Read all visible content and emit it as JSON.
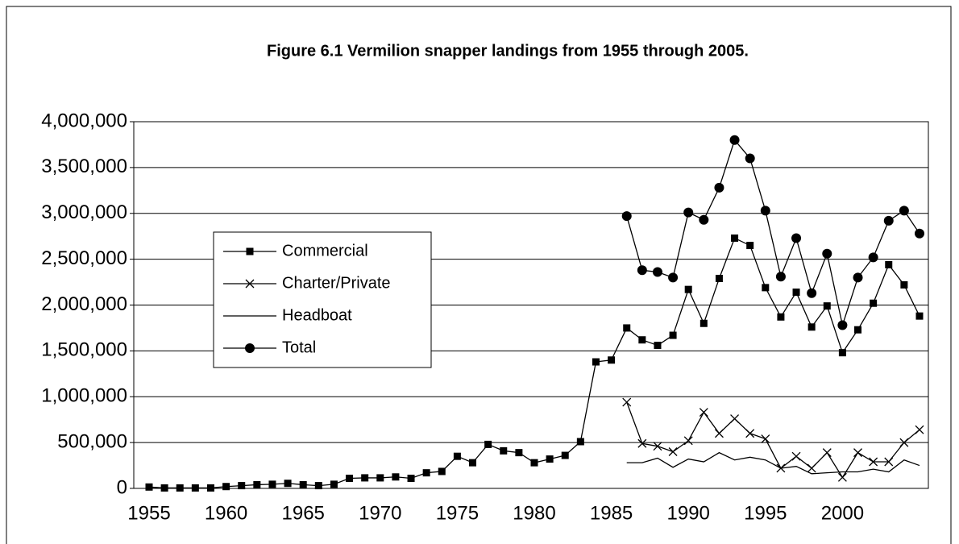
{
  "chart_data": {
    "type": "line",
    "title": "Figure 6.1  Vermilion snapper landings from 1955 through 2005.",
    "categories": [
      1955,
      null,
      null,
      null,
      null,
      1960,
      null,
      null,
      null,
      null,
      1965,
      null,
      null,
      null,
      null,
      1970,
      null,
      null,
      null,
      null,
      1975,
      null,
      null,
      null,
      null,
      1980,
      null,
      null,
      null,
      null,
      1985,
      null,
      null,
      null,
      null,
      1990,
      null,
      null,
      null,
      null,
      1995,
      null,
      null,
      null,
      null,
      2000,
      null,
      null,
      null,
      null,
      null
    ],
    "ylim": [
      0,
      4000000
    ],
    "yticks": [
      0,
      {
        "value": 500000,
        "label": "500,000"
      },
      {
        "value": 1000000,
        "label": "1,000,000"
      },
      {
        "value": 1500000,
        "label": "1,500,000"
      },
      {
        "value": 2000000,
        "label": "2,000,000"
      },
      {
        "value": 2500000,
        "label": "2,500,000"
      },
      {
        "value": 3000000,
        "label": "3,000,000"
      },
      {
        "value": 3500000,
        "label": "3,500,000"
      },
      {
        "value": 4000000,
        "label": "4,000,000"
      }
    ],
    "grid": true,
    "legend": "left",
    "series": [
      {
        "name": "Commercial",
        "color": "#000000",
        "marker": "square",
        "values": [
          15000,
          5000,
          5000,
          5000,
          5000,
          20000,
          30000,
          40000,
          45000,
          55000,
          40000,
          30000,
          45000,
          110000,
          115000,
          115000,
          125000,
          110000,
          170000,
          185000,
          350000,
          280000,
          480000,
          410000,
          390000,
          280000,
          320000,
          360000,
          510000,
          1380000,
          1400000,
          1750000,
          1620000,
          1560000,
          1670000,
          2170000,
          1800000,
          2290000,
          2730000,
          2650000,
          2190000,
          1870000,
          2140000,
          1760000,
          1990000,
          1480000,
          1730000,
          2020000,
          2440000,
          2220000,
          1880000
        ]
      },
      {
        "name": "Charter/Private",
        "color": "#000000",
        "marker": "x",
        "values": [
          null,
          null,
          null,
          null,
          null,
          null,
          null,
          null,
          null,
          null,
          null,
          null,
          null,
          null,
          null,
          null,
          null,
          null,
          null,
          null,
          null,
          null,
          null,
          null,
          null,
          null,
          null,
          null,
          null,
          null,
          null,
          940000,
          490000,
          460000,
          400000,
          520000,
          830000,
          600000,
          760000,
          600000,
          540000,
          220000,
          350000,
          220000,
          390000,
          120000,
          390000,
          290000,
          290000,
          500000,
          640000
        ]
      },
      {
        "name": "Headboat",
        "color": "#000000",
        "marker": "none",
        "values": [
          null,
          null,
          null,
          null,
          null,
          null,
          null,
          null,
          null,
          null,
          null,
          null,
          null,
          null,
          null,
          null,
          null,
          null,
          null,
          null,
          null,
          null,
          null,
          null,
          null,
          null,
          null,
          null,
          null,
          null,
          null,
          280000,
          280000,
          330000,
          230000,
          320000,
          290000,
          390000,
          310000,
          340000,
          310000,
          220000,
          240000,
          160000,
          170000,
          180000,
          180000,
          210000,
          180000,
          310000,
          250000
        ]
      },
      {
        "name": "Total",
        "color": "#000000",
        "marker": "circle",
        "values": [
          null,
          null,
          null,
          null,
          null,
          null,
          null,
          null,
          null,
          null,
          null,
          null,
          null,
          null,
          null,
          null,
          null,
          null,
          null,
          null,
          null,
          null,
          null,
          null,
          null,
          null,
          null,
          null,
          null,
          null,
          null,
          2970000,
          2380000,
          2360000,
          2300000,
          3010000,
          2930000,
          3280000,
          3800000,
          3600000,
          3030000,
          2310000,
          2730000,
          2130000,
          2560000,
          1780000,
          2300000,
          2520000,
          2920000,
          3030000,
          2780000
        ]
      }
    ]
  }
}
